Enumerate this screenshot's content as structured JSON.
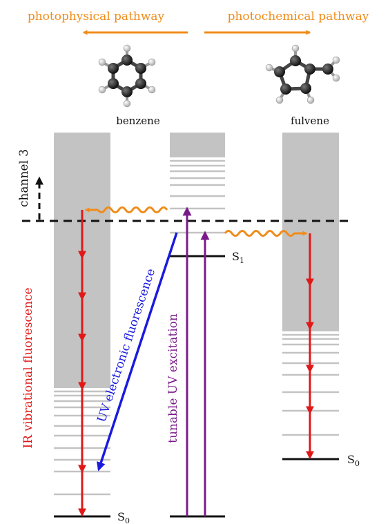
{
  "header": {
    "left_pathway": "photophysical pathway",
    "right_pathway": "photochemical pathway"
  },
  "molecules": {
    "left": "benzene",
    "right": "fulvene"
  },
  "labels": {
    "channel": "channel 3",
    "ir_fluorescence": "IR vibrational fluorescence",
    "uv_fluorescence": "UV electronic fluorescence",
    "uv_excitation": "tunable UV excitation",
    "s1": "S",
    "s1_sub": "1",
    "s0_left": "S",
    "s0_left_sub": "0",
    "s0_right": "S",
    "s0_right_sub": "0"
  },
  "colors": {
    "orange": "#f08c1a",
    "red": "#e01818",
    "blue": "#1a1ae0",
    "purple": "#7a1a8a",
    "gray": "#c3c3c3",
    "black": "#111111"
  }
}
